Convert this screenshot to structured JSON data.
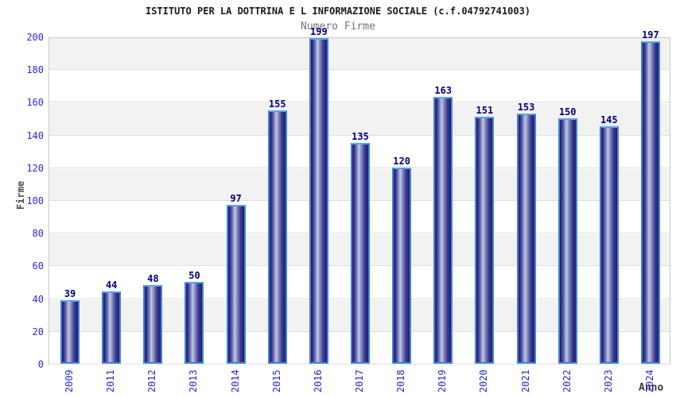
{
  "chart_data": {
    "type": "bar",
    "title": "ISTITUTO PER LA DOTTRINA E L INFORMAZIONE SOCIALE (c.f.04792741003)",
    "subtitle": "Numero Firme",
    "xlabel": "Anno",
    "ylabel": "Firme",
    "categories": [
      "2009",
      "2011",
      "2012",
      "2013",
      "2014",
      "2015",
      "2016",
      "2017",
      "2018",
      "2019",
      "2020",
      "2021",
      "2022",
      "2023",
      "2024"
    ],
    "values": [
      39,
      44,
      48,
      50,
      97,
      155,
      199,
      135,
      120,
      163,
      151,
      153,
      150,
      145,
      197
    ],
    "ylim": [
      0,
      200
    ],
    "ytick_step": 20,
    "yticks": [
      0,
      20,
      40,
      60,
      80,
      100,
      120,
      140,
      160,
      180,
      200
    ],
    "grid": "horizontal-bands",
    "legend": "none",
    "colors": {
      "band_gray": "#f2f2f2",
      "band_white": "#ffffff",
      "grid_line": "#dedede",
      "bar_border": "#4083dd",
      "bar_edge": "#1d1d72",
      "bar_highlight": "#c3c9e6",
      "value_label": "#000080",
      "tick_label": "#2929d0",
      "title": "#1a1a1a",
      "subtitle": "#757575",
      "axis_label": "#4d4d4d"
    }
  }
}
